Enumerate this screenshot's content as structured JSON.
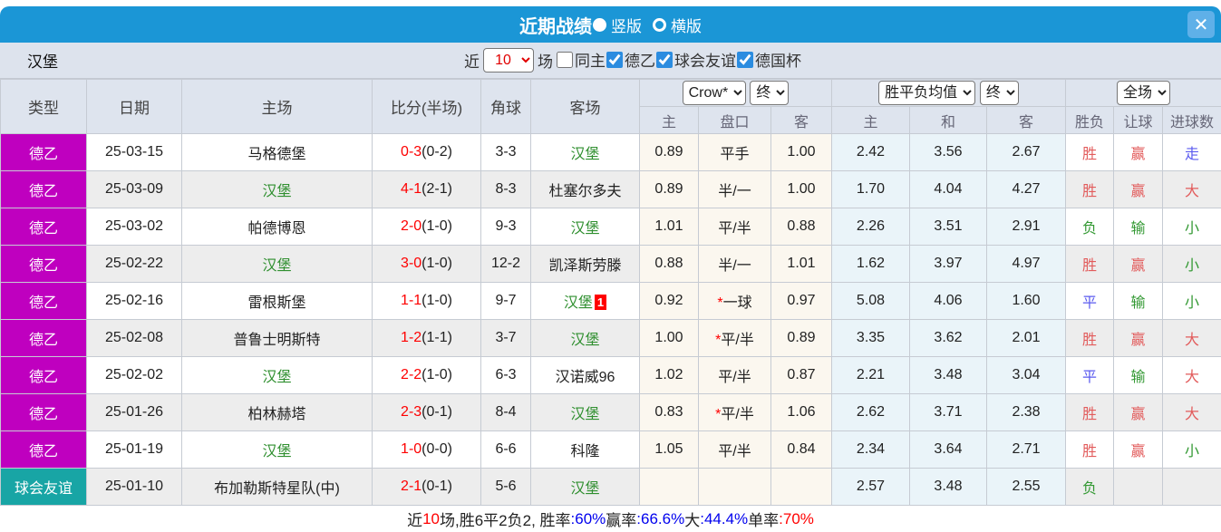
{
  "colors": {
    "titlebar_bg": "#1b96d6",
    "close_bg": "#5fb0e8",
    "filterbar_bg": "#dde3ed",
    "header_bg": "#dee4ee",
    "row_alt_bg": "#ededed",
    "ah_col_bg": "#fbf7ef",
    "odds_col_bg": "#eaf4f9",
    "league_badge_bg": "#bf00bf",
    "friendly_badge_bg": "#18a5a5",
    "team_green": "#2f8f2f",
    "score_red": "#fe0000",
    "result_red": "#e25b5b",
    "result_green": "#339933",
    "result_blue": "#5b5bef"
  },
  "titlebar": {
    "title": "近期战绩",
    "radios": [
      {
        "label": "竖版",
        "selected": true
      },
      {
        "label": "横版",
        "selected": false
      }
    ],
    "close_label": "✕"
  },
  "filters": {
    "team": "汉堡",
    "near_label": "近",
    "count_value": "10",
    "games_label": "场",
    "checkboxes": [
      {
        "label": "同主",
        "checked": false
      },
      {
        "label": "德乙",
        "checked": true
      },
      {
        "label": "球会友谊",
        "checked": true
      },
      {
        "label": "德国杯",
        "checked": true
      }
    ]
  },
  "table": {
    "left_headers": [
      "类型",
      "日期",
      "主场",
      "比分(半场)",
      "角球",
      "客场"
    ],
    "selects": {
      "ah_company": "Crow*",
      "ah_time": "终",
      "odds_type": "胜平负均值",
      "odds_time": "终",
      "scope": "全场"
    },
    "sub_headers": [
      "主",
      "盘口",
      "客",
      "主",
      "和",
      "客",
      "胜负",
      "让球",
      "进球数"
    ],
    "rows": [
      {
        "type": "德乙",
        "type_bg": "#bf00bf",
        "date": "25-03-15",
        "home": "马格德堡",
        "home_is_focus": false,
        "score": "0-3",
        "half": "(0-2)",
        "corner": "3-3",
        "away": "汉堡",
        "away_is_focus": true,
        "away_badge": "",
        "ah_home": "0.89",
        "ah_star": false,
        "ah_line": "平手",
        "ah_away": "1.00",
        "odds_home": "2.42",
        "odds_draw": "3.56",
        "odds_away": "2.67",
        "result": "胜",
        "result_color": "red",
        "handicap": "赢",
        "handicap_color": "red",
        "goals": "走",
        "goals_color": "blue"
      },
      {
        "type": "德乙",
        "type_bg": "#bf00bf",
        "date": "25-03-09",
        "home": "汉堡",
        "home_is_focus": true,
        "score": "4-1",
        "half": "(2-1)",
        "corner": "8-3",
        "away": "杜塞尔多夫",
        "away_is_focus": false,
        "away_badge": "",
        "ah_home": "0.89",
        "ah_star": false,
        "ah_line": "半/一",
        "ah_away": "1.00",
        "odds_home": "1.70",
        "odds_draw": "4.04",
        "odds_away": "4.27",
        "result": "胜",
        "result_color": "red",
        "handicap": "赢",
        "handicap_color": "red",
        "goals": "大",
        "goals_color": "red"
      },
      {
        "type": "德乙",
        "type_bg": "#bf00bf",
        "date": "25-03-02",
        "home": "帕德博恩",
        "home_is_focus": false,
        "score": "2-0",
        "half": "(1-0)",
        "corner": "9-3",
        "away": "汉堡",
        "away_is_focus": true,
        "away_badge": "",
        "ah_home": "1.01",
        "ah_star": false,
        "ah_line": "平/半",
        "ah_away": "0.88",
        "odds_home": "2.26",
        "odds_draw": "3.51",
        "odds_away": "2.91",
        "result": "负",
        "result_color": "green",
        "handicap": "输",
        "handicap_color": "green",
        "goals": "小",
        "goals_color": "green"
      },
      {
        "type": "德乙",
        "type_bg": "#bf00bf",
        "date": "25-02-22",
        "home": "汉堡",
        "home_is_focus": true,
        "score": "3-0",
        "half": "(1-0)",
        "corner": "12-2",
        "away": "凯泽斯劳滕",
        "away_is_focus": false,
        "away_badge": "",
        "ah_home": "0.88",
        "ah_star": false,
        "ah_line": "半/一",
        "ah_away": "1.01",
        "odds_home": "1.62",
        "odds_draw": "3.97",
        "odds_away": "4.97",
        "result": "胜",
        "result_color": "red",
        "handicap": "赢",
        "handicap_color": "red",
        "goals": "小",
        "goals_color": "green"
      },
      {
        "type": "德乙",
        "type_bg": "#bf00bf",
        "date": "25-02-16",
        "home": "雷根斯堡",
        "home_is_focus": false,
        "score": "1-1",
        "half": "(1-0)",
        "corner": "9-7",
        "away": "汉堡",
        "away_is_focus": true,
        "away_badge": "1",
        "ah_home": "0.92",
        "ah_star": true,
        "ah_line": "一球",
        "ah_away": "0.97",
        "odds_home": "5.08",
        "odds_draw": "4.06",
        "odds_away": "1.60",
        "result": "平",
        "result_color": "blue",
        "handicap": "输",
        "handicap_color": "green",
        "goals": "小",
        "goals_color": "green"
      },
      {
        "type": "德乙",
        "type_bg": "#bf00bf",
        "date": "25-02-08",
        "home": "普鲁士明斯特",
        "home_is_focus": false,
        "score": "1-2",
        "half": "(1-1)",
        "corner": "3-7",
        "away": "汉堡",
        "away_is_focus": true,
        "away_badge": "",
        "ah_home": "1.00",
        "ah_star": true,
        "ah_line": "平/半",
        "ah_away": "0.89",
        "odds_home": "3.35",
        "odds_draw": "3.62",
        "odds_away": "2.01",
        "result": "胜",
        "result_color": "red",
        "handicap": "赢",
        "handicap_color": "red",
        "goals": "大",
        "goals_color": "red"
      },
      {
        "type": "德乙",
        "type_bg": "#bf00bf",
        "date": "25-02-02",
        "home": "汉堡",
        "home_is_focus": true,
        "score": "2-2",
        "half": "(1-0)",
        "corner": "6-3",
        "away": "汉诺威96",
        "away_is_focus": false,
        "away_badge": "",
        "ah_home": "1.02",
        "ah_star": false,
        "ah_line": "平/半",
        "ah_away": "0.87",
        "odds_home": "2.21",
        "odds_draw": "3.48",
        "odds_away": "3.04",
        "result": "平",
        "result_color": "blue",
        "handicap": "输",
        "handicap_color": "green",
        "goals": "大",
        "goals_color": "red"
      },
      {
        "type": "德乙",
        "type_bg": "#bf00bf",
        "date": "25-01-26",
        "home": "柏林赫塔",
        "home_is_focus": false,
        "score": "2-3",
        "half": "(0-1)",
        "corner": "8-4",
        "away": "汉堡",
        "away_is_focus": true,
        "away_badge": "",
        "ah_home": "0.83",
        "ah_star": true,
        "ah_line": "平/半",
        "ah_away": "1.06",
        "odds_home": "2.62",
        "odds_draw": "3.71",
        "odds_away": "2.38",
        "result": "胜",
        "result_color": "red",
        "handicap": "赢",
        "handicap_color": "red",
        "goals": "大",
        "goals_color": "red"
      },
      {
        "type": "德乙",
        "type_bg": "#bf00bf",
        "date": "25-01-19",
        "home": "汉堡",
        "home_is_focus": true,
        "score": "1-0",
        "half": "(0-0)",
        "corner": "6-6",
        "away": "科隆",
        "away_is_focus": false,
        "away_badge": "",
        "ah_home": "1.05",
        "ah_star": false,
        "ah_line": "平/半",
        "ah_away": "0.84",
        "odds_home": "2.34",
        "odds_draw": "3.64",
        "odds_away": "2.71",
        "result": "胜",
        "result_color": "red",
        "handicap": "赢",
        "handicap_color": "red",
        "goals": "小",
        "goals_color": "green"
      },
      {
        "type": "球会友谊",
        "type_bg": "#18a5a5",
        "date": "25-01-10",
        "home": "布加勒斯特星队(中)",
        "home_is_focus": false,
        "score": "2-1",
        "half": "(0-1)",
        "corner": "5-6",
        "away": "汉堡",
        "away_is_focus": true,
        "away_badge": "",
        "ah_home": "",
        "ah_star": false,
        "ah_line": "",
        "ah_away": "",
        "odds_home": "2.57",
        "odds_draw": "3.48",
        "odds_away": "2.55",
        "result": "负",
        "result_color": "green",
        "handicap": "",
        "handicap_color": "",
        "goals": "",
        "goals_color": ""
      }
    ]
  },
  "footer": {
    "parts": [
      {
        "text": "近",
        "color": "black"
      },
      {
        "text": "10",
        "color": "red"
      },
      {
        "text": "场,胜6平2负2, 胜率",
        "color": "black"
      },
      {
        "text": ":60%",
        "color": "blue"
      },
      {
        "text": " 赢率",
        "color": "black"
      },
      {
        "text": ":66.6%",
        "color": "blue"
      },
      {
        "text": " 大",
        "color": "black"
      },
      {
        "text": ":44.4%",
        "color": "blue"
      },
      {
        "text": " 单率",
        "color": "black"
      },
      {
        "text": ":70%",
        "color": "red"
      }
    ]
  }
}
